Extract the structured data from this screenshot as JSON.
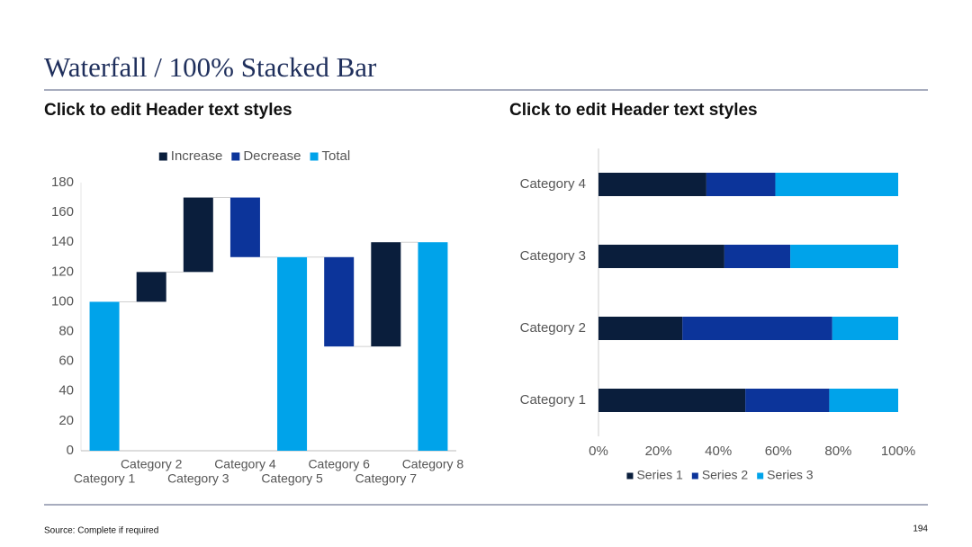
{
  "title": "Waterfall / 100% Stacked Bar",
  "chart_data": [
    {
      "type": "waterfall",
      "title": "Click to edit Header text styles",
      "categories": [
        "Category 1",
        "Category 2",
        "Category 3",
        "Category 4",
        "Category 5",
        "Category 6",
        "Category 7",
        "Category 8"
      ],
      "series": [
        {
          "name": "Increase",
          "color": "#0a1e3c",
          "values": [
            null,
            20,
            50,
            null,
            null,
            null,
            70,
            null
          ]
        },
        {
          "name": "Decrease",
          "color": "#0c349a",
          "values": [
            null,
            null,
            null,
            40,
            null,
            60,
            null,
            null
          ]
        },
        {
          "name": "Total",
          "color": "#00a3ea",
          "values": [
            100,
            null,
            null,
            null,
            130,
            null,
            null,
            140
          ]
        }
      ],
      "ylim": [
        0,
        180
      ],
      "yticks": [
        0,
        20,
        40,
        60,
        80,
        100,
        120,
        140,
        160,
        180
      ],
      "legend": "top"
    },
    {
      "type": "stacked_hbar",
      "title": "Click to edit Header text styles",
      "categories": [
        "Category 1",
        "Category 2",
        "Category 3",
        "Category 4"
      ],
      "series": [
        {
          "name": "Series 1",
          "color": "#0a1e3c",
          "values": [
            49,
            28,
            42,
            36
          ]
        },
        {
          "name": "Series 2",
          "color": "#0c349a",
          "values": [
            28,
            50,
            22,
            23
          ]
        },
        {
          "name": "Series 3",
          "color": "#00a3ea",
          "values": [
            23,
            22,
            36,
            41
          ]
        }
      ],
      "xlim": [
        0,
        100
      ],
      "xticks": [
        {
          "value": 0,
          "label": "0%"
        },
        {
          "value": 20,
          "label": "20%"
        },
        {
          "value": 40,
          "label": "40%"
        },
        {
          "value": 60,
          "label": "60%"
        },
        {
          "value": 80,
          "label": "80%"
        },
        {
          "value": 100,
          "label": "100%"
        }
      ],
      "legend": "bottom"
    }
  ],
  "source": "Source: Complete if required",
  "page_number": 194
}
